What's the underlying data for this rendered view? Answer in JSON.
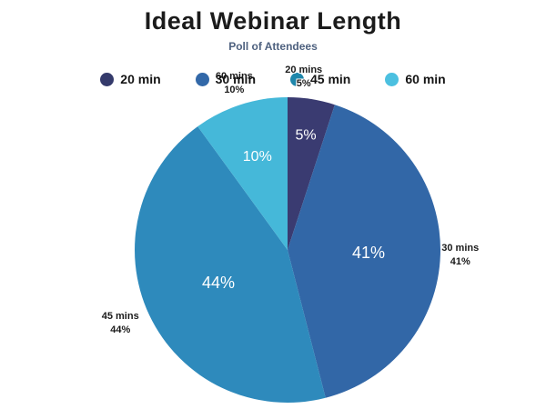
{
  "page": {
    "background": "#ffffff"
  },
  "header": {
    "title": "Ideal Webinar Length",
    "subtitle": "Poll of Attendees",
    "title_color": "#1b1b1b",
    "subtitle_color": "#4e617f"
  },
  "legend": {
    "position": "top",
    "items": [
      {
        "label": "20 min",
        "color": "#343a6b"
      },
      {
        "label": "30 min",
        "color": "#3268a8"
      },
      {
        "label": "45 min",
        "color": "#1f87ab"
      },
      {
        "label": "60 min",
        "color": "#4cc0e0"
      }
    ]
  },
  "chart_data": {
    "type": "pie",
    "title": "Ideal Webinar Length",
    "subtitle": "Poll of Attendees",
    "unit": "%",
    "categories": [
      "20 min",
      "30 min",
      "45 min",
      "60 min"
    ],
    "values": [
      5,
      41,
      44,
      10
    ],
    "start_angle_deg": 0,
    "direction": "clockwise",
    "legend_position": "top",
    "inner_label_color": "#ffffff",
    "outer_label_color": "#1a1a1a",
    "slices": [
      {
        "category": "20 min",
        "value": 5,
        "color": "#3a3b71",
        "inner_label": "5%",
        "outer_label_line1": "20 mins",
        "outer_label_line2": "5%"
      },
      {
        "category": "30 min",
        "value": 41,
        "color": "#3267a7",
        "inner_label": "41%",
        "outer_label_line1": "30 mins",
        "outer_label_line2": "41%"
      },
      {
        "category": "45 min",
        "value": 44,
        "color": "#2e8abc",
        "inner_label": "44%",
        "outer_label_line1": "45 mins",
        "outer_label_line2": "44%"
      },
      {
        "category": "60 min",
        "value": 10,
        "color": "#45b8d9",
        "inner_label": "10%",
        "outer_label_line1": "60 mins",
        "outer_label_line2": "10%"
      }
    ],
    "label_radius_frac": [
      0.76,
      0.53,
      0.5,
      0.64
    ],
    "outer_radius_frac": 1.13
  }
}
